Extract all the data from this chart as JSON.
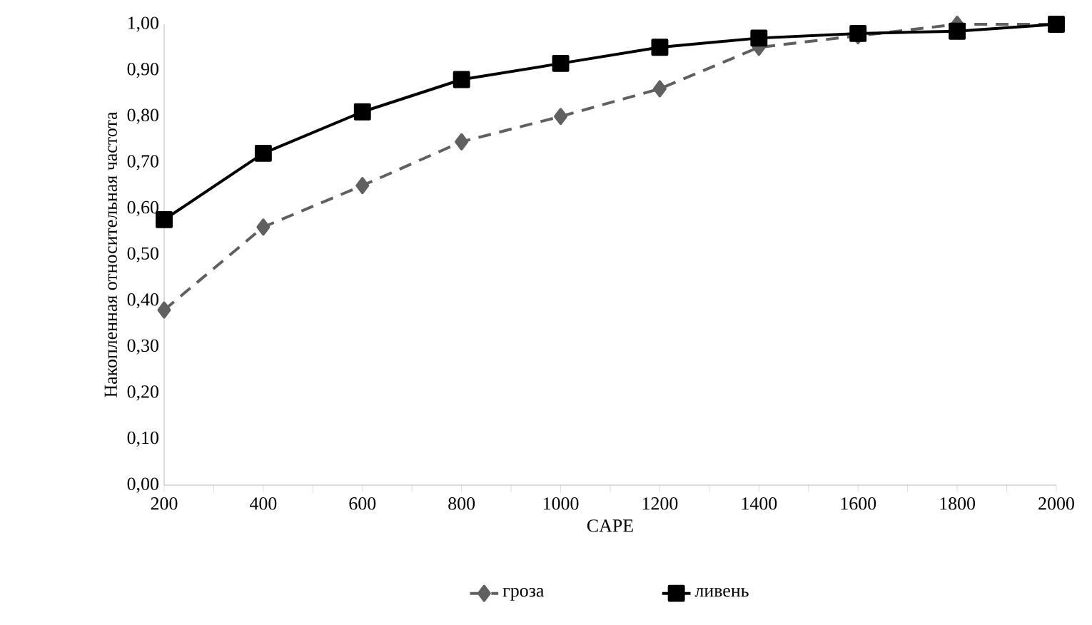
{
  "chart_data": {
    "type": "line",
    "xlabel": "CAPE",
    "ylabel": "Накопленная относительная частота",
    "categories": [
      "200",
      "400",
      "600",
      "800",
      "1000",
      "1200",
      "1400",
      "1600",
      "1800",
      "2000"
    ],
    "series": [
      {
        "name": "гроза",
        "color": "#606060",
        "marker": "diamond",
        "line_style": "dashed",
        "values": [
          0.38,
          0.56,
          0.65,
          0.745,
          0.8,
          0.86,
          0.95,
          0.975,
          1.0,
          1.0
        ]
      },
      {
        "name": "ливень",
        "color": "#000000",
        "marker": "square",
        "line_style": "solid",
        "values": [
          0.576,
          0.72,
          0.81,
          0.88,
          0.915,
          0.95,
          0.97,
          0.98,
          0.985,
          1.0
        ]
      }
    ],
    "ylim": [
      0,
      1
    ],
    "yticks": [
      {
        "value": 0,
        "label": "0,00"
      },
      {
        "value": 0.1,
        "label": "0,10"
      },
      {
        "value": 0.2,
        "label": "0,20"
      },
      {
        "value": 0.3,
        "label": "0,30"
      },
      {
        "value": 0.4,
        "label": "0,40"
      },
      {
        "value": 0.5,
        "label": "0,50"
      },
      {
        "value": 0.6,
        "label": "0,60"
      },
      {
        "value": 0.7,
        "label": "0,70"
      },
      {
        "value": 0.8,
        "label": "0,80"
      },
      {
        "value": 0.9,
        "label": "0,90"
      },
      {
        "value": 1,
        "label": "1,00"
      }
    ],
    "grid": false,
    "legend": "bottom"
  }
}
